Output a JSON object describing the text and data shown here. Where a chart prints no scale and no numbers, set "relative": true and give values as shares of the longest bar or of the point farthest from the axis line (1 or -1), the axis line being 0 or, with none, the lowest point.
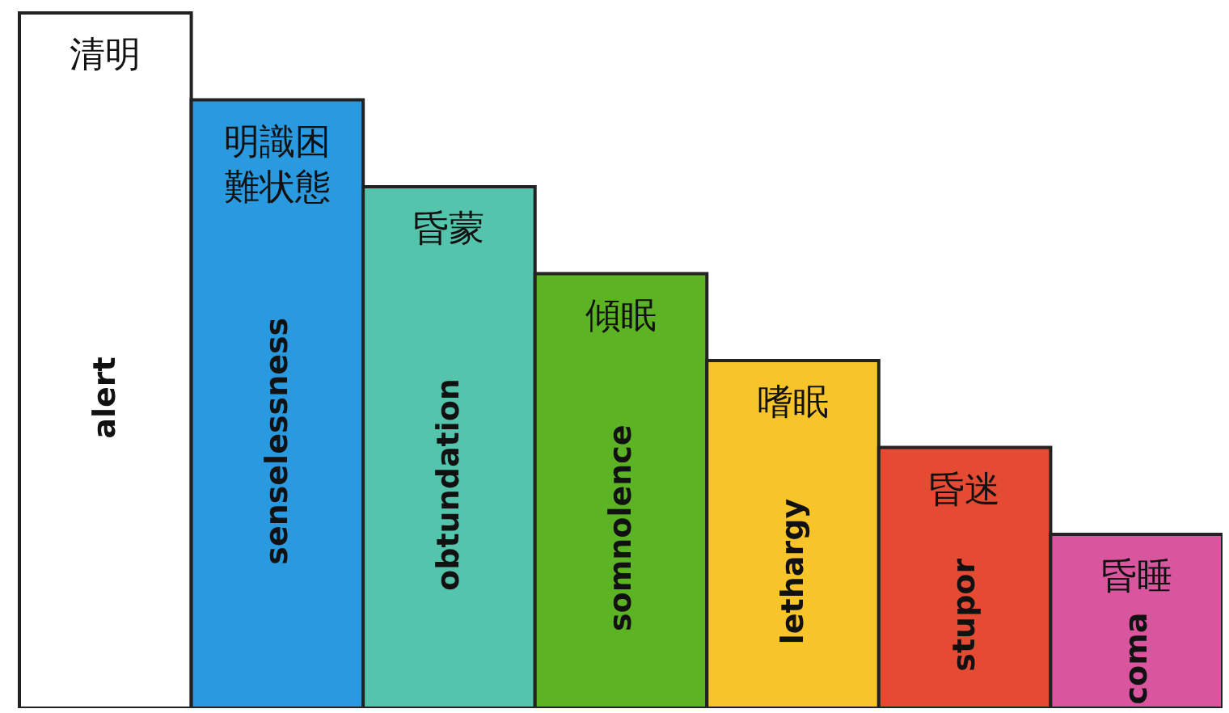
{
  "chart_data": {
    "type": "bar",
    "relative": true,
    "categories": [
      "alert",
      "senselessness",
      "obtundation",
      "somnolence",
      "lethargy",
      "stupor",
      "coma"
    ],
    "values": [
      1,
      0.875,
      0.75,
      0.625,
      0.5,
      0.375,
      0.25
    ],
    "colors": [
      "#ffffff",
      "#2a9ae0",
      "#55c4ad",
      "#5cb324",
      "#f7c52a",
      "#e54a33",
      "#d9559e"
    ],
    "annotations": [
      {
        "text": "清明",
        "x": "alert",
        "y": 1
      },
      {
        "text": "明識困難状態",
        "x": "senselessness",
        "y": 0.875
      },
      {
        "text": "昏蒙",
        "x": "obtundation",
        "y": 0.75
      },
      {
        "text": "傾眠",
        "x": "somnolence",
        "y": 0.625
      },
      {
        "text": "嗜眠",
        "x": "lethargy",
        "y": 0.5
      },
      {
        "text": "昏迷",
        "x": "stupor",
        "y": 0.375
      },
      {
        "text": "昏睡",
        "x": "coma",
        "y": 0.25
      }
    ]
  }
}
